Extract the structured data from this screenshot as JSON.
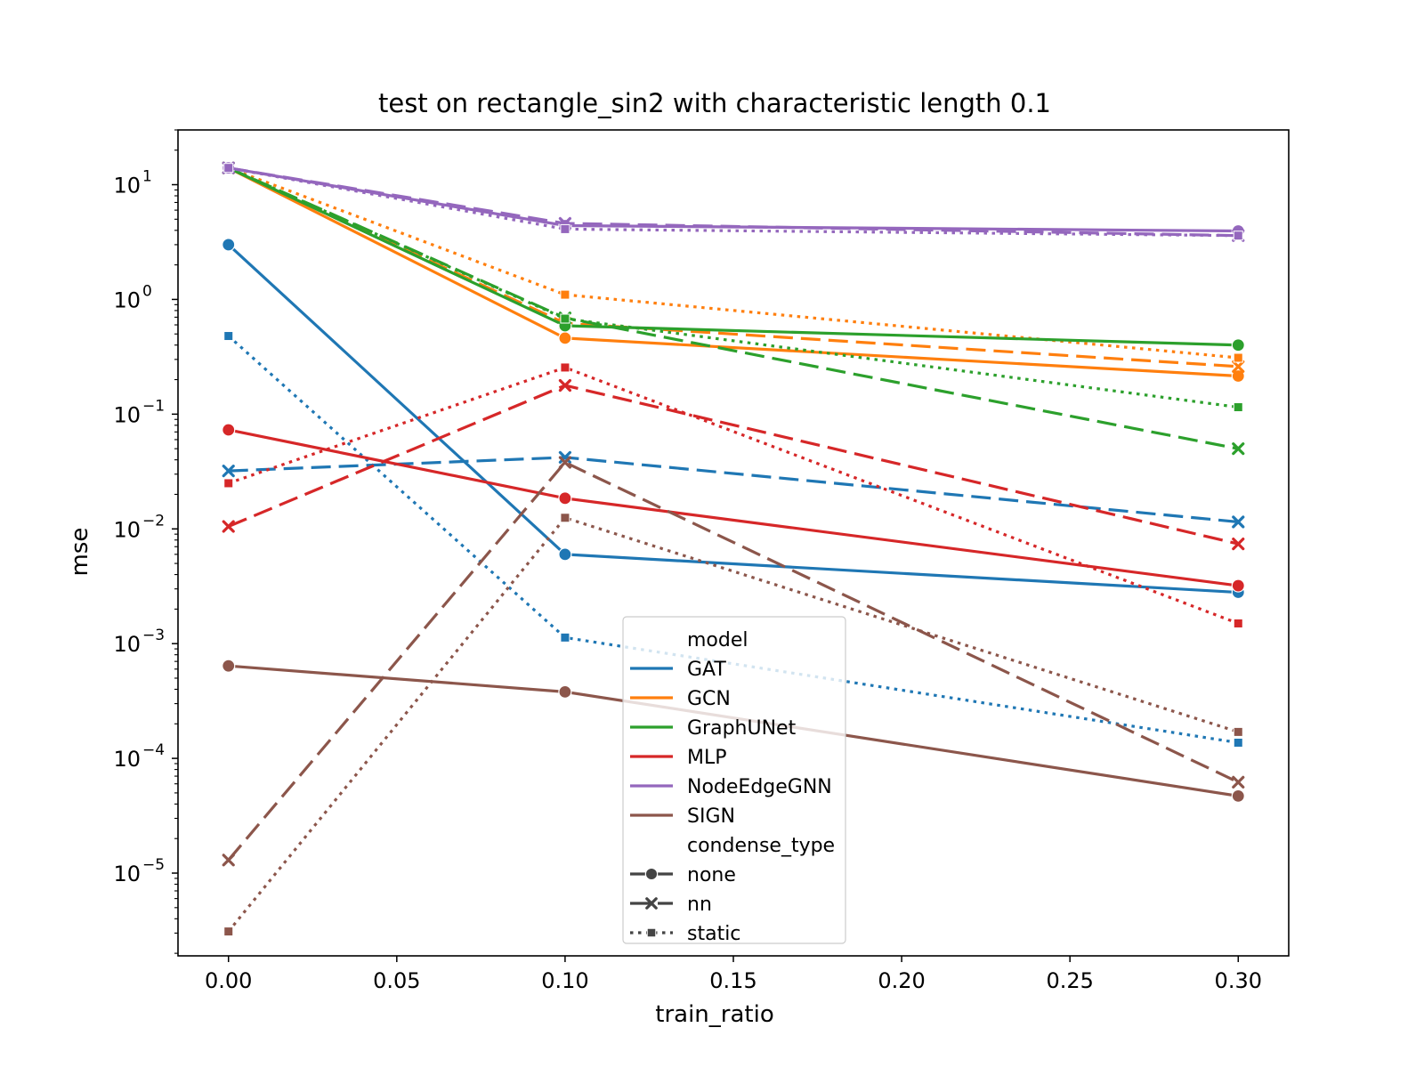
{
  "chart_data": {
    "type": "line",
    "title": "test on rectangle_sin2 with characteristic length 0.1",
    "xlabel": "train_ratio",
    "ylabel": "mse",
    "x": [
      0.0,
      0.1,
      0.3
    ],
    "xlim": [
      -0.015,
      0.315
    ],
    "ylim": [
      1.9e-06,
      30
    ],
    "yscale": "log",
    "grid": false,
    "x_ticks": [
      0.0,
      0.05,
      0.1,
      0.15,
      0.2,
      0.25,
      0.3
    ],
    "x_tick_labels": [
      "0.00",
      "0.05",
      "0.10",
      "0.15",
      "0.20",
      "0.25",
      "0.30"
    ],
    "y_ticks": [
      {
        "value": 10,
        "label": "10",
        "exp": "1"
      },
      {
        "value": 1,
        "label": "10",
        "exp": "0"
      },
      {
        "value": 0.1,
        "label": "10",
        "exp": "−1"
      },
      {
        "value": 0.01,
        "label": "10",
        "exp": "−2"
      },
      {
        "value": 0.001,
        "label": "10",
        "exp": "−3"
      },
      {
        "value": 0.0001,
        "label": "10",
        "exp": "−4"
      },
      {
        "value": 1e-05,
        "label": "10",
        "exp": "−5"
      }
    ],
    "models": [
      {
        "name": "GAT",
        "color": "#1f77b4"
      },
      {
        "name": "GCN",
        "color": "#ff7f0e"
      },
      {
        "name": "GraphUNet",
        "color": "#2ca02c"
      },
      {
        "name": "MLP",
        "color": "#d62728"
      },
      {
        "name": "NodeEdgeGNN",
        "color": "#9467bd"
      },
      {
        "name": "SIGN",
        "color": "#8c564b"
      }
    ],
    "condense_types": [
      {
        "name": "none",
        "dash": "solid",
        "marker": "circle"
      },
      {
        "name": "nn",
        "dash": "dashed",
        "marker": "x"
      },
      {
        "name": "static",
        "dash": "dotted",
        "marker": "square"
      }
    ],
    "series": [
      {
        "model": "GAT",
        "condense_type": "none",
        "values": [
          3.0,
          0.006,
          0.0028
        ]
      },
      {
        "model": "GAT",
        "condense_type": "nn",
        "values": [
          0.032,
          0.042,
          0.0115
        ]
      },
      {
        "model": "GAT",
        "condense_type": "static",
        "values": [
          0.48,
          0.00113,
          0.000137
        ]
      },
      {
        "model": "GCN",
        "condense_type": "none",
        "values": [
          14.0,
          0.46,
          0.215
        ]
      },
      {
        "model": "GCN",
        "condense_type": "nn",
        "values": [
          14.0,
          0.62,
          0.26
        ]
      },
      {
        "model": "GCN",
        "condense_type": "static",
        "values": [
          14.0,
          1.1,
          0.31
        ]
      },
      {
        "model": "GraphUNet",
        "condense_type": "none",
        "values": [
          14.0,
          0.59,
          0.4
        ]
      },
      {
        "model": "GraphUNet",
        "condense_type": "nn",
        "values": [
          14.0,
          0.69,
          0.05
        ]
      },
      {
        "model": "GraphUNet",
        "condense_type": "static",
        "values": [
          14.0,
          0.68,
          0.115
        ]
      },
      {
        "model": "MLP",
        "condense_type": "none",
        "values": [
          0.073,
          0.0185,
          0.0032
        ]
      },
      {
        "model": "MLP",
        "condense_type": "nn",
        "values": [
          0.0105,
          0.178,
          0.0074
        ]
      },
      {
        "model": "MLP",
        "condense_type": "static",
        "values": [
          0.025,
          0.255,
          0.0015
        ]
      },
      {
        "model": "NodeEdgeGNN",
        "condense_type": "none",
        "values": [
          14.0,
          4.4,
          3.95
        ]
      },
      {
        "model": "NodeEdgeGNN",
        "condense_type": "nn",
        "values": [
          14.0,
          4.6,
          3.6
        ]
      },
      {
        "model": "NodeEdgeGNN",
        "condense_type": "static",
        "values": [
          14.0,
          4.1,
          3.6
        ]
      },
      {
        "model": "SIGN",
        "condense_type": "none",
        "values": [
          0.00064,
          0.00038,
          4.7e-05
        ]
      },
      {
        "model": "SIGN",
        "condense_type": "nn",
        "values": [
          1.3e-05,
          0.038,
          6.2e-05
        ]
      },
      {
        "model": "SIGN",
        "condense_type": "static",
        "values": [
          3.1e-06,
          0.0125,
          0.00017
        ]
      }
    ],
    "legend": {
      "position": "lower-center",
      "model_title": "model",
      "condense_title": "condense_type",
      "marker_color": "#444444"
    }
  }
}
